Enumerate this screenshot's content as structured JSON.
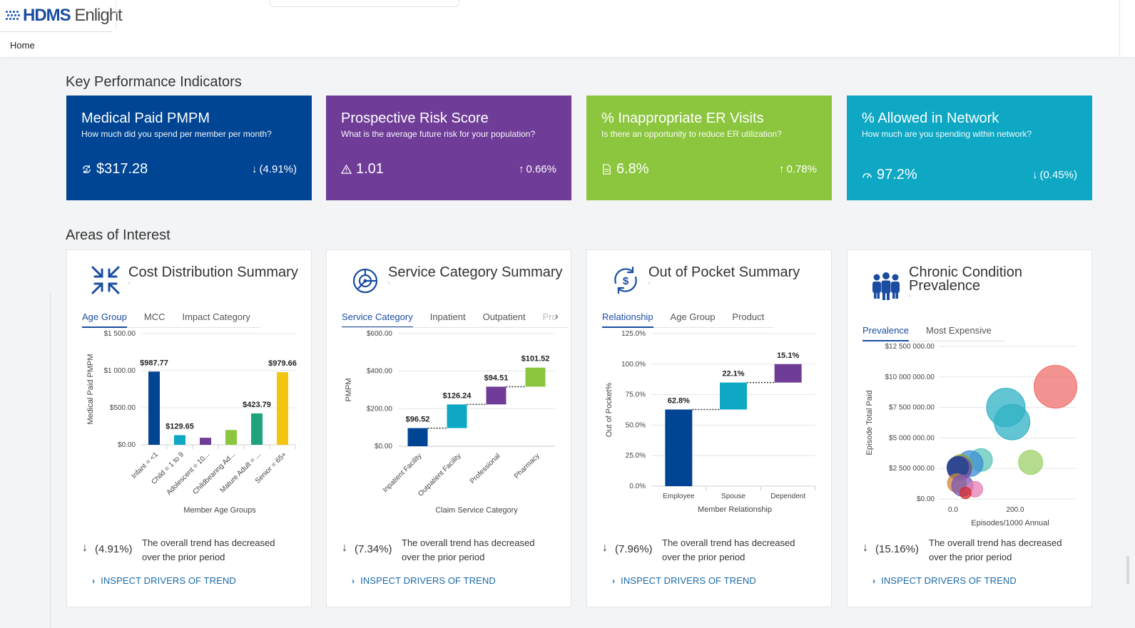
{
  "app": {
    "logo_hdms": "HDMS",
    "logo_enlight": "Enlight"
  },
  "breadcrumb": {
    "home": "Home"
  },
  "sections": {
    "kpi_title": "Key Performance Indicators",
    "areas_title": "Areas of Interest"
  },
  "kpis": [
    {
      "title": "Medical Paid PMPM",
      "subtitle": "How much did you spend per member per month?",
      "value": "$317.28",
      "change": "(4.91%)",
      "direction": "down",
      "icon": "money-cycle-icon",
      "color": "#004593"
    },
    {
      "title": "Prospective Risk Score",
      "subtitle": "What is the average future risk for your population?",
      "value": "1.01",
      "change": "0.66%",
      "direction": "up",
      "icon": "warning-triangle-icon",
      "color": "#6f3c97"
    },
    {
      "title": "% Inappropriate ER Visits",
      "subtitle": "Is there an opportunity to reduce ER utilization?",
      "value": "6.8%",
      "change": "0.78%",
      "direction": "up",
      "icon": "document-icon",
      "color": "#8cc63f"
    },
    {
      "title": "% Allowed in Network",
      "subtitle": "How much are you spending within network?",
      "value": "97.2%",
      "change": "(0.45%)",
      "direction": "down",
      "icon": "gauge-icon",
      "color": "#0ea8c4"
    }
  ],
  "cards": [
    {
      "title": "Cost Distribution Summary",
      "title_tick": "'",
      "icon": "compress-arrows-icon",
      "tabs": [
        "Age Group",
        "MCC",
        "Impact Category"
      ],
      "trend_change": "(4.91%)",
      "trend_text": "The overall trend has decreased over the prior period",
      "inspect_label": "INSPECT DRIVERS OF TREND"
    },
    {
      "title": "Service Category Summary",
      "title_tick": "'",
      "icon": "target-chart-icon",
      "tabs": [
        "Service Category",
        "Inpatient",
        "Outpatient",
        "Pro"
      ],
      "trend_change": "(7.34%)",
      "trend_text": "The overall trend has decreased over the prior period",
      "inspect_label": "INSPECT DRIVERS OF TREND"
    },
    {
      "title": "Out of Pocket Summary",
      "title_tick": "'",
      "icon": "dollar-cycle-icon",
      "tabs": [
        "Relationship",
        "Age Group",
        "Product"
      ],
      "trend_change": "(7.96%)",
      "trend_text": "The overall trend has decreased over the prior period",
      "inspect_label": "INSPECT DRIVERS OF TREND"
    },
    {
      "title_line1": "Chronic Condition",
      "title_line2": "Prevalence",
      "title_tick": "'",
      "icon": "people-group-icon",
      "tabs": [
        "Prevalence",
        "Most Expensive"
      ],
      "trend_change": "(15.16%)",
      "trend_text": "The overall trend has decreased over the prior period",
      "inspect_label": "INSPECT DRIVERS OF TREND"
    }
  ],
  "chart_data": [
    {
      "type": "bar",
      "ylabel": "Medical Paid PMPM",
      "xlabel": "Member Age Groups",
      "ylim": [
        0,
        1500
      ],
      "yticks": [
        "$0.00",
        "$500.00",
        "$1 000.00",
        "$1 500.00"
      ],
      "categories": [
        "Infant = <1",
        "Child = 1 to 9",
        "Adolescent = 10...",
        "Childbearing Ad...",
        "Mature Adult = ...",
        "Senior = 65+"
      ],
      "values": [
        987.77,
        129.65,
        95,
        200,
        423.79,
        979.66
      ],
      "labels": [
        "$987.77",
        "$129.65",
        "",
        "",
        "$423.79",
        "$979.66"
      ],
      "colors": [
        "#004593",
        "#0ea8c4",
        "#6f3c97",
        "#8cc63f",
        "#1fa37e",
        "#f2c511"
      ]
    },
    {
      "type": "bar",
      "subtype": "waterfall",
      "ylabel": "PMPM",
      "xlabel": "Claim Service Category",
      "ylim": [
        0,
        600
      ],
      "yticks": [
        "$0.00",
        "$200.00",
        "$400.00",
        "$600.00"
      ],
      "categories": [
        "Inpatient Facility",
        "Outpatient Facility",
        "Professional",
        "Pharmacy"
      ],
      "values": [
        96.52,
        126.24,
        94.51,
        101.52
      ],
      "labels": [
        "$96.52",
        "$126.24",
        "$94.51",
        "$101.52"
      ],
      "colors": [
        "#004593",
        "#0ea8c4",
        "#6f3c97",
        "#8cc63f"
      ]
    },
    {
      "type": "bar",
      "subtype": "waterfall",
      "ylabel": "Out of Pocket%",
      "xlabel": "Member Relationship",
      "ylim": [
        0,
        125
      ],
      "yticks": [
        "0.0%",
        "25.0%",
        "50.0%",
        "75.0%",
        "100.0%",
        "125.0%"
      ],
      "categories": [
        "Employee",
        "Spouse",
        "Dependent"
      ],
      "values": [
        62.8,
        22.1,
        15.1
      ],
      "labels": [
        "62.8%",
        "22.1%",
        "15.1%"
      ],
      "colors": [
        "#004593",
        "#0ea8c4",
        "#6f3c97"
      ]
    },
    {
      "type": "scatter",
      "subtype": "bubble",
      "ylabel": "Episode Total Paid",
      "xlabel": "Episodes/1000 Annual",
      "ylim": [
        0,
        12500000
      ],
      "yticks": [
        "$0.00",
        "$2 500 000.00",
        "$5 000 000.00",
        "$7 500 000.00",
        "$10 000 000.00",
        "$12 500 000.00"
      ],
      "xticks": [
        "0.0",
        "200.0"
      ],
      "points": [
        {
          "x": 330,
          "y": 9200000,
          "r": 30,
          "color": "#ef6f6c"
        },
        {
          "x": 170,
          "y": 7500000,
          "r": 27,
          "color": "#2fb1c4"
        },
        {
          "x": 190,
          "y": 6300000,
          "r": 25,
          "color": "#2fb1c4"
        },
        {
          "x": 250,
          "y": 3000000,
          "r": 17,
          "color": "#9ed16a"
        },
        {
          "x": 90,
          "y": 3200000,
          "r": 16,
          "color": "#5cc7b8"
        },
        {
          "x": 55,
          "y": 2900000,
          "r": 18,
          "color": "#3b8ed3"
        },
        {
          "x": 25,
          "y": 2700000,
          "r": 16,
          "color": "#8aa33a"
        },
        {
          "x": 20,
          "y": 2500000,
          "r": 17,
          "color": "#6a4aa8"
        },
        {
          "x": 15,
          "y": 2600000,
          "r": 15,
          "color": "#1a3f8f"
        },
        {
          "x": 12,
          "y": 1300000,
          "r": 13,
          "color": "#d08a3a"
        },
        {
          "x": 30,
          "y": 1100000,
          "r": 15,
          "color": "#7c58b5"
        },
        {
          "x": 70,
          "y": 800000,
          "r": 11,
          "color": "#e77fb6"
        },
        {
          "x": 40,
          "y": 500000,
          "r": 8,
          "color": "#d62d2d"
        }
      ]
    }
  ]
}
